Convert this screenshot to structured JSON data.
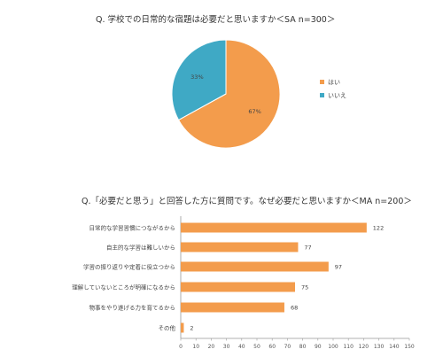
{
  "chart_data": [
    {
      "type": "pie",
      "title": "Q. 学校での日常的な宿題は必要だと思いますか＜SA n=300＞",
      "categories": [
        "はい",
        "いいえ"
      ],
      "values": [
        67,
        33
      ],
      "value_labels": [
        "67%",
        "33%"
      ],
      "colors": [
        "#F39C4C",
        "#3FA9C5"
      ],
      "legend_position": "right"
    },
    {
      "type": "bar",
      "orientation": "horizontal",
      "title": "Q.「必要だと思う」と回答した方に質問です。なぜ必要だと思いますか＜MA n=200＞",
      "categories": [
        "日常的な学習習慣につながるから",
        "自主的な学習は難しいから",
        "学習の振り返りや定着に役立つから",
        "理解していないところが明確になるから",
        "物事をやり遂げる力を育てるから",
        "その他"
      ],
      "values": [
        122,
        77,
        97,
        75,
        68,
        2
      ],
      "xlim": [
        0,
        150
      ],
      "xticks": [
        0,
        10,
        20,
        30,
        40,
        50,
        60,
        70,
        80,
        90,
        100,
        110,
        120,
        130,
        140,
        150
      ],
      "color": "#F39C4C",
      "grid": false
    }
  ]
}
